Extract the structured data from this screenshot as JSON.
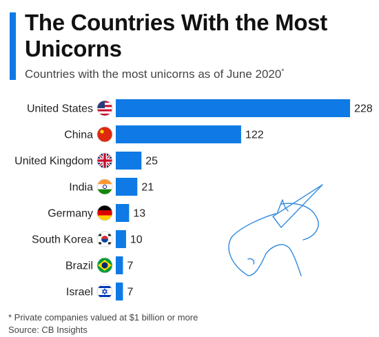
{
  "header": {
    "title": "The Countries With the Most Unicorns",
    "subtitle": "Countries with the most unicorns as of June 2020",
    "subtitle_marker": "*"
  },
  "colors": {
    "accent": "#0f7ae5",
    "bar": "#0f7ae5",
    "unicorn_line": "#3a8fe0"
  },
  "chart_data": {
    "type": "bar",
    "orientation": "horizontal",
    "categories": [
      "United States",
      "China",
      "United Kingdom",
      "India",
      "Germany",
      "South Korea",
      "Brazil",
      "Israel"
    ],
    "values": [
      228,
      122,
      25,
      21,
      13,
      10,
      7,
      7
    ],
    "flags": [
      "us-flag-icon",
      "china-flag-icon",
      "uk-flag-icon",
      "india-flag-icon",
      "germany-flag-icon",
      "south-korea-flag-icon",
      "brazil-flag-icon",
      "israel-flag-icon"
    ],
    "xlim": [
      0,
      228
    ],
    "grid": false,
    "decoration": "unicorn-line-art"
  },
  "footer": {
    "note": "* Private companies valued at $1 billion or more",
    "source": "Source: CB Insights"
  }
}
